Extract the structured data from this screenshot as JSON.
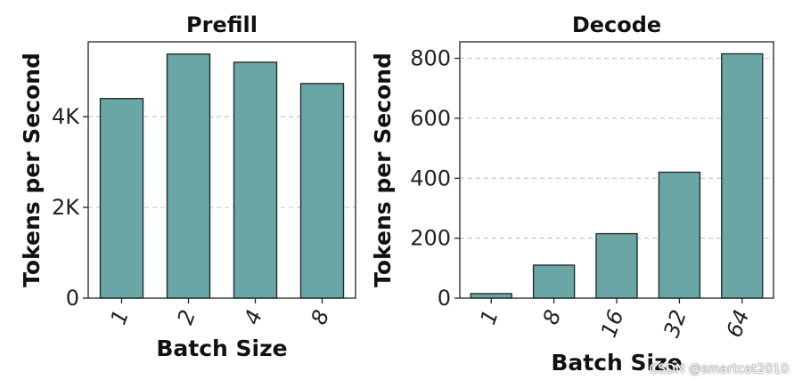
{
  "chart_data": [
    {
      "type": "bar",
      "title": "Prefill",
      "xlabel": "Batch Size",
      "ylabel": "Tokens per Second",
      "categories": [
        "1",
        "2",
        "4",
        "8"
      ],
      "values": [
        4400,
        5380,
        5200,
        4730
      ],
      "ylim": [
        0,
        5650
      ],
      "yticks": [
        0,
        2000,
        4000
      ],
      "ytick_labels": [
        "0",
        "2K",
        "4K"
      ],
      "grid": "y-dashed",
      "bar_color": "#6aa6a6"
    },
    {
      "type": "bar",
      "title": "Decode",
      "xlabel": "Batch Size",
      "ylabel": "Tokens per Second",
      "categories": [
        "1",
        "8",
        "16",
        "32",
        "64"
      ],
      "values": [
        15,
        110,
        215,
        420,
        815
      ],
      "ylim": [
        0,
        855
      ],
      "yticks": [
        0,
        200,
        400,
        600,
        800
      ],
      "ytick_labels": [
        "0",
        "200",
        "400",
        "600",
        "800"
      ],
      "grid": "y-dashed",
      "bar_color": "#6aa6a6"
    }
  ],
  "watermark": "CSDN @smartcat2010"
}
